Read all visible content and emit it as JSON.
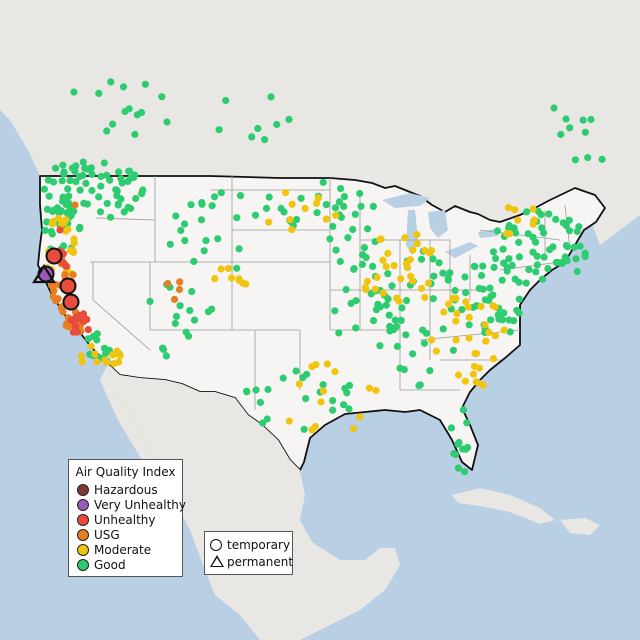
{
  "legend": {
    "title": "Air Quality Index",
    "categories": [
      {
        "label": "Hazardous",
        "color": "#7e3b32"
      },
      {
        "label": "Very Unhealthy",
        "color": "#9b59b6"
      },
      {
        "label": "Unhealthy",
        "color": "#e74c3c"
      },
      {
        "label": "USG",
        "color": "#e67e22"
      },
      {
        "label": "Moderate",
        "color": "#f1c40f"
      },
      {
        "label": "Good",
        "color": "#2ecc71"
      }
    ],
    "types": [
      {
        "label": "temporary",
        "shape": "circle"
      },
      {
        "label": "permanent",
        "shape": "triangle"
      }
    ]
  },
  "colors": {
    "ocean": "#b9cfe4",
    "land": "#eceae7",
    "us_land": "#f6f5f3",
    "border": "#111111",
    "state_line": "#9a9a9a"
  }
}
